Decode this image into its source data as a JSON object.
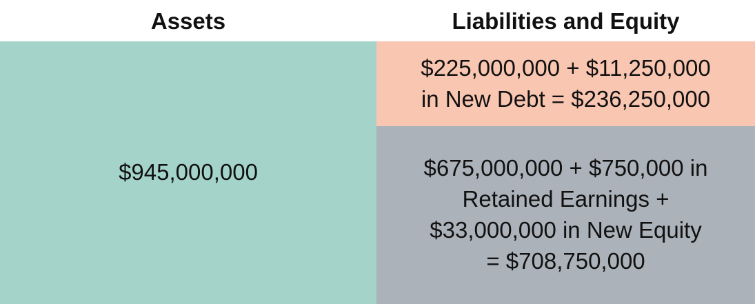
{
  "headers": {
    "assets": "Assets",
    "liabilities_equity": "Liabilities and Equity"
  },
  "assets": {
    "text": "$945,000,000",
    "color": "#a4d4c9"
  },
  "liabilities": {
    "lines": [
      "$225,000,000 + $11,250,000",
      "in New Debt = $236,250,000"
    ],
    "color": "#f9c6b1"
  },
  "equity": {
    "lines": [
      "$675,000,000 + $750,000 in",
      "Retained Earnings +",
      "$33,000,000 in New Equity",
      "= $708,750,000"
    ],
    "color": "#abb2b9"
  }
}
